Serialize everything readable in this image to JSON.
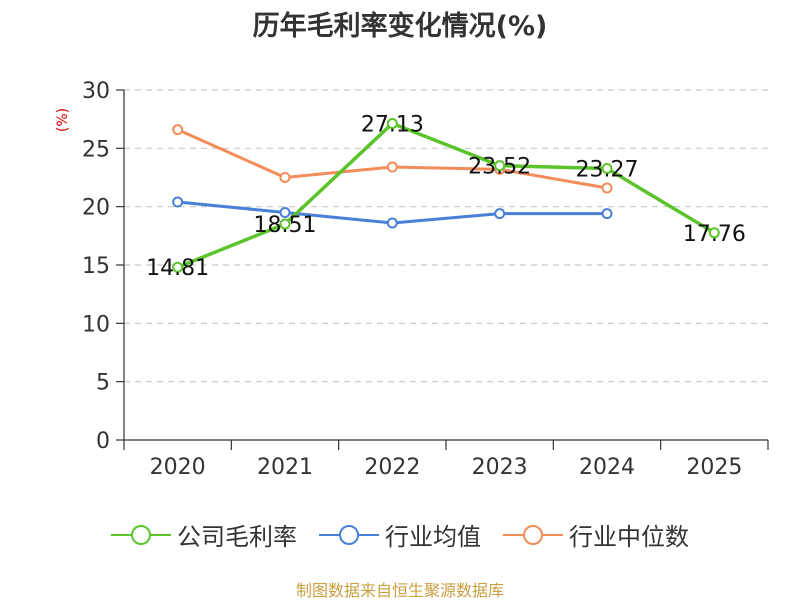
{
  "title": "历年毛利率变化情况(%)",
  "unit_label": "(%)",
  "source": "制图数据来自恒生聚源数据库",
  "chart_data": {
    "type": "line",
    "categories": [
      "2020",
      "2021",
      "2022",
      "2023",
      "2024",
      "2025"
    ],
    "ylim": [
      0,
      30
    ],
    "yticks": [
      0,
      5,
      10,
      15,
      20,
      25,
      30
    ],
    "grid": true,
    "legend_position": "bottom",
    "series": [
      {
        "name": "公司毛利率",
        "color": "#5bc42b",
        "values": [
          14.81,
          18.51,
          27.13,
          23.52,
          23.27,
          17.76
        ],
        "labels": [
          "14.81",
          "18.51",
          "27.13",
          "23.52",
          "23.27",
          "17.76"
        ]
      },
      {
        "name": "行业均值",
        "color": "#4a7fd8",
        "values": [
          20.4,
          19.5,
          18.6,
          19.4,
          19.4,
          null
        ]
      },
      {
        "name": "行业中位数",
        "color": "#f28c5a",
        "values": [
          26.6,
          22.5,
          23.4,
          23.2,
          21.6,
          null
        ]
      }
    ]
  }
}
